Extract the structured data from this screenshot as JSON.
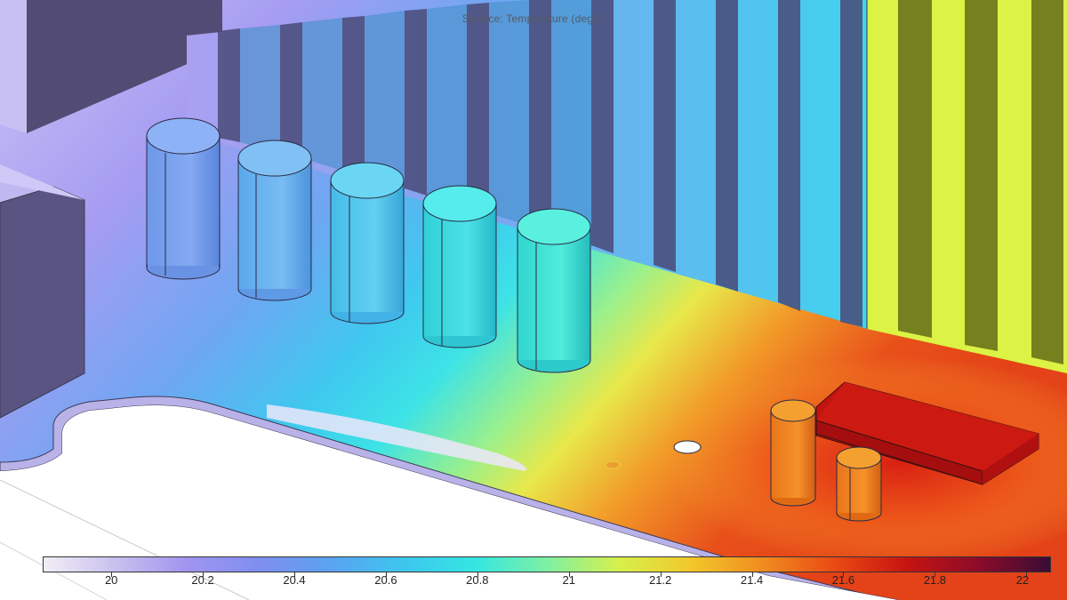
{
  "plot": {
    "title": "Surface: Temperature (degC)"
  },
  "colorbar": {
    "min": 19.85,
    "max": 22.05,
    "ticks": [
      {
        "value": 20,
        "label": "20"
      },
      {
        "value": 20.2,
        "label": "20.2"
      },
      {
        "value": 20.4,
        "label": "20.4"
      },
      {
        "value": 20.6,
        "label": "20.6"
      },
      {
        "value": 20.8,
        "label": "20.8"
      },
      {
        "value": 21,
        "label": "21"
      },
      {
        "value": 21.2,
        "label": "21.2"
      },
      {
        "value": 21.4,
        "label": "21.4"
      },
      {
        "value": 21.6,
        "label": "21.6"
      },
      {
        "value": 21.8,
        "label": "21.8"
      },
      {
        "value": 22,
        "label": "22"
      }
    ],
    "colors": [
      "#f2eef6",
      "#c8c0ee",
      "#a094f0",
      "#7f8ef0",
      "#5aa3f0",
      "#3dc6ee",
      "#34e6e2",
      "#7ef0a4",
      "#d6f04c",
      "#f2c82a",
      "#f08c20",
      "#ea4a14",
      "#c61410",
      "#8c0c2a",
      "#3a0c36"
    ]
  }
}
